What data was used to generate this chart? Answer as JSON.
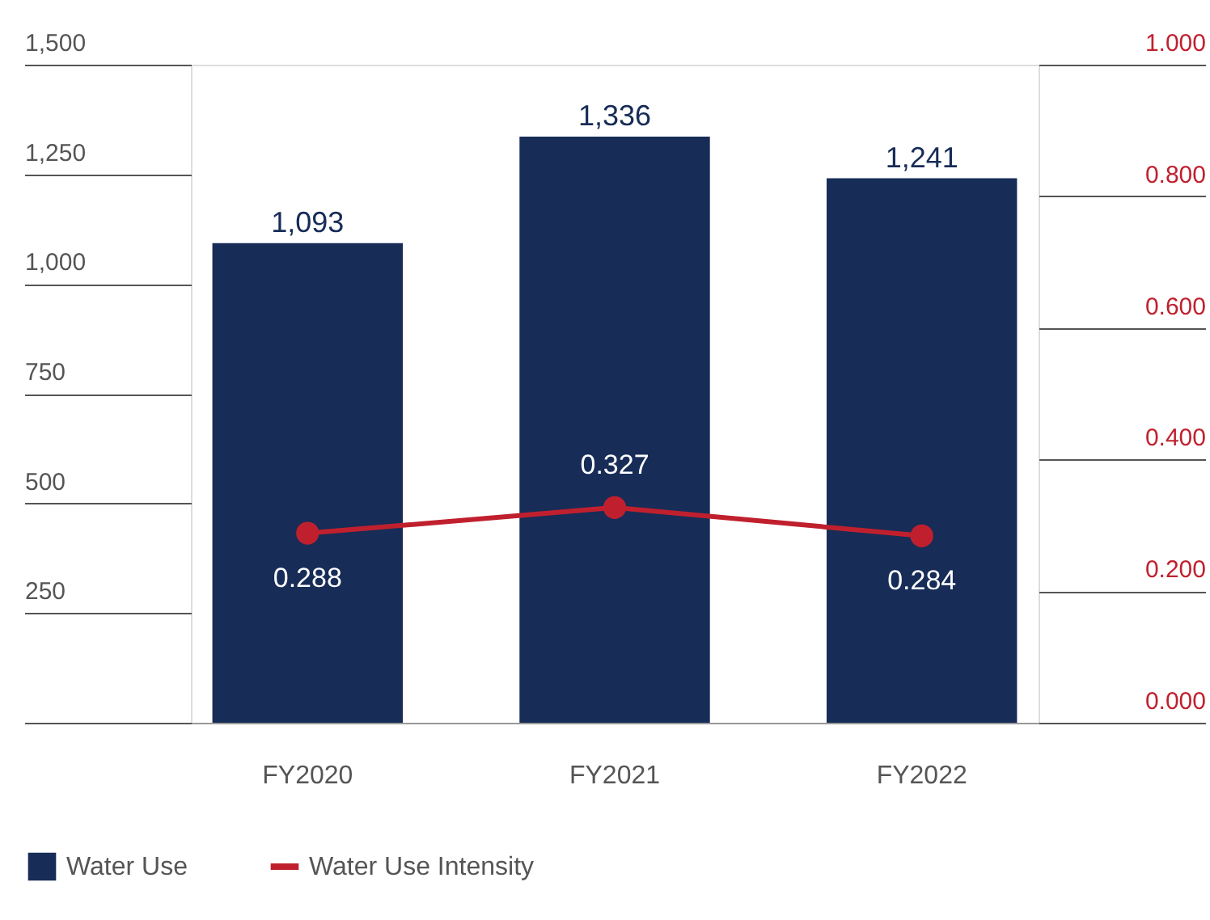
{
  "chart_data": {
    "type": "bar",
    "categories": [
      "FY2020",
      "FY2021",
      "FY2022"
    ],
    "series": [
      {
        "name": "Water Use",
        "color": "#172c57",
        "values": [
          1093,
          1336,
          1241
        ]
      },
      {
        "name": "Water Use Intensity",
        "type": "line",
        "axis": "y2",
        "color": "#c0202e",
        "values": [
          0.288,
          0.327,
          0.284
        ]
      }
    ],
    "value_labels": [
      [
        "1,093",
        "1,336",
        "1,241"
      ],
      [
        "0.288",
        "0.327",
        "0.284"
      ]
    ],
    "ylim": [
      0,
      1500
    ],
    "yticks": [
      {
        "value": 0,
        "label": null
      },
      {
        "value": 250,
        "label": "250"
      },
      {
        "value": 500,
        "label": "500"
      },
      {
        "value": 750,
        "label": "750"
      },
      {
        "value": 1000,
        "label": "1,000"
      },
      {
        "value": 1250,
        "label": "1,250"
      },
      {
        "value": 1500,
        "label": "1,500"
      }
    ],
    "y2lim": [
      0,
      1.0
    ],
    "y2ticks": [
      {
        "value": 0,
        "label": "0.000"
      },
      {
        "value": 0.2,
        "label": "0.200"
      },
      {
        "value": 0.4,
        "label": "0.400"
      },
      {
        "value": 0.6,
        "label": "0.600"
      },
      {
        "value": 0.8,
        "label": "0.800"
      },
      {
        "value": 1.0,
        "label": "1.000"
      }
    ],
    "legend": "bottom left",
    "marker": "circle",
    "line_style": "solid"
  }
}
